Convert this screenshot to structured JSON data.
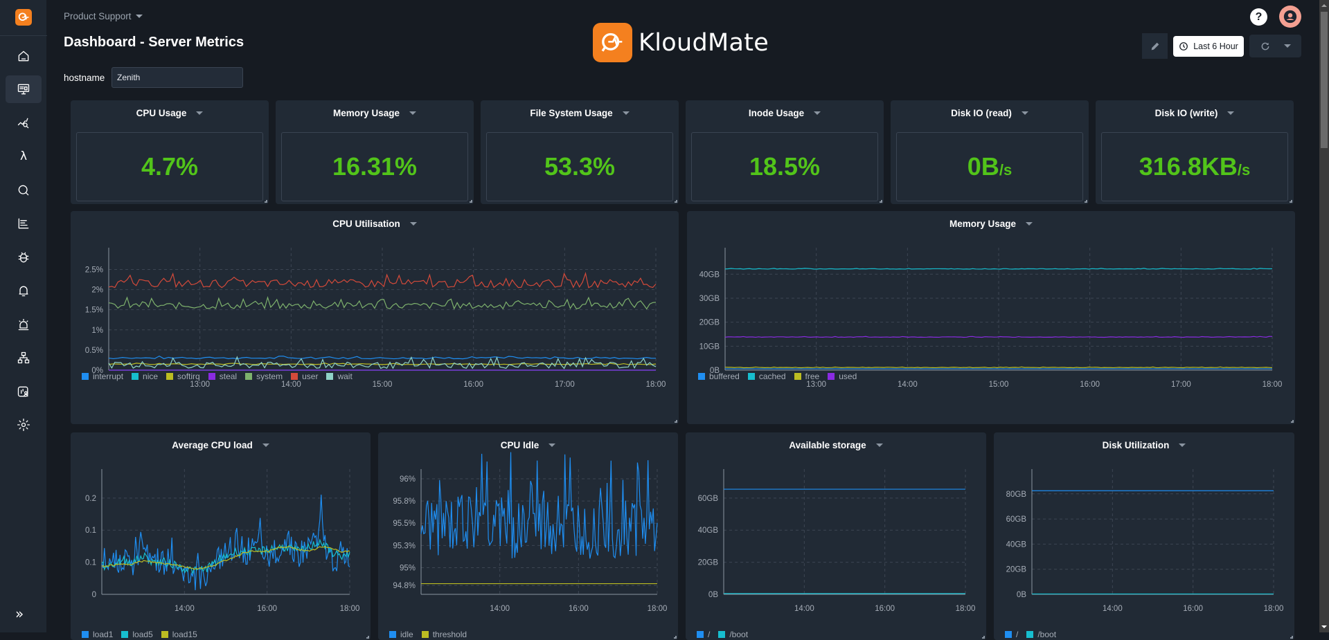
{
  "app": {
    "brand": "KloudMate"
  },
  "header": {
    "org": "Product Support",
    "title": "Dashboard - Server Metrics",
    "hostname_label": "hostname",
    "hostname_value": "Zenith",
    "time_range": "Last 6 Hour",
    "help": "?"
  },
  "sidebar": {
    "items": [
      {
        "name": "home",
        "icon": "home-icon"
      },
      {
        "name": "dashboards",
        "icon": "monitor-icon",
        "active": true
      },
      {
        "name": "explore",
        "icon": "chart-search-icon"
      },
      {
        "name": "functions",
        "icon": "lambda-icon"
      },
      {
        "name": "search",
        "icon": "search-icon"
      },
      {
        "name": "traces",
        "icon": "gantt-icon"
      },
      {
        "name": "errors",
        "icon": "bug-icon"
      },
      {
        "name": "alerts",
        "icon": "bell-icon"
      },
      {
        "name": "incidents",
        "icon": "siren-icon"
      },
      {
        "name": "topology",
        "icon": "sitemap-icon"
      },
      {
        "name": "users",
        "icon": "user-report-icon"
      },
      {
        "name": "settings",
        "icon": "gear-icon"
      }
    ],
    "expand": "»"
  },
  "stats": [
    {
      "title": "CPU Usage",
      "value": "4.7%",
      "unit": ""
    },
    {
      "title": "Memory Usage",
      "value": "16.31%",
      "unit": ""
    },
    {
      "title": "File System Usage",
      "value": "53.3%",
      "unit": ""
    },
    {
      "title": "Inode Usage",
      "value": "18.5%",
      "unit": ""
    },
    {
      "title": "Disk IO (read)",
      "value": "0B",
      "unit": "/s"
    },
    {
      "title": "Disk IO (write)",
      "value": "316.8KB",
      "unit": "/s"
    }
  ],
  "colors": {
    "stat_value": "#52c41a",
    "accent": "#f4801f"
  },
  "chart_data": [
    {
      "id": "cpu_util",
      "type": "line",
      "title": "CPU Utilisation",
      "x": [
        "13:00",
        "14:00",
        "15:00",
        "16:00",
        "17:00",
        "18:00"
      ],
      "x_range": [
        "12:00",
        "18:00"
      ],
      "yticks": [
        "0%",
        "0.5%",
        "1%",
        "1.5%",
        "2%",
        "2.5%"
      ],
      "ylim": [
        0,
        2.8
      ],
      "grid": true,
      "legend": "bottom-left",
      "series": [
        {
          "name": "interrupt",
          "color": "#1f8ef1",
          "mean": 0.3,
          "noise": 0.02
        },
        {
          "name": "nice",
          "color": "#17becf",
          "mean": 0.0,
          "noise": 0.0
        },
        {
          "name": "softirq",
          "color": "#bcbd22",
          "mean": 0.15,
          "noise": 0.01
        },
        {
          "name": "steal",
          "color": "#8a2be2",
          "mean": 0.0,
          "noise": 0.0
        },
        {
          "name": "system",
          "color": "#7eb26d",
          "mean": 1.6,
          "noise": 0.08
        },
        {
          "name": "user",
          "color": "#d44a3a",
          "mean": 2.15,
          "noise": 0.1
        },
        {
          "name": "wait",
          "color": "#8fd3c7",
          "mean": 0.12,
          "noise": 0.08
        }
      ]
    },
    {
      "id": "mem_usage",
      "type": "line",
      "title": "Memory Usage",
      "x": [
        "13:00",
        "14:00",
        "15:00",
        "16:00",
        "17:00",
        "18:00"
      ],
      "yticks": [
        "0B",
        "10GB",
        "20GB",
        "30GB",
        "40GB"
      ],
      "ylim": [
        0,
        47
      ],
      "grid": true,
      "legend": "bottom-left",
      "series": [
        {
          "name": "buffered",
          "color": "#1f8ef1",
          "mean": 0.6,
          "noise": 0.0
        },
        {
          "name": "cached",
          "color": "#17becf",
          "mean": 42.2,
          "noise": 0.1
        },
        {
          "name": "free",
          "color": "#bcbd22",
          "mean": 1.1,
          "noise": 0.1
        },
        {
          "name": "used",
          "color": "#8a2be2",
          "mean": 13.8,
          "noise": 0.1
        }
      ]
    },
    {
      "id": "avg_cpu_load",
      "type": "line",
      "title": "Average CPU load",
      "x": [
        "14:00",
        "16:00",
        "18:00"
      ],
      "yticks": [
        "0",
        "0.1",
        "0.1",
        "0.2"
      ],
      "ylim": [
        0,
        0.27
      ],
      "grid": true,
      "series": [
        {
          "name": "load1",
          "color": "#1f8ef1",
          "values": [
            0.06,
            0.07,
            0.09,
            0.06,
            0.13,
            0.08,
            0.08,
            0.07,
            0.06,
            0.04,
            0.05,
            0.08,
            0.09,
            0.12,
            0.1,
            0.1,
            0.08,
            0.11,
            0.13,
            0.09,
            0.11,
            0.15,
            0.08,
            0.09
          ]
        },
        {
          "name": "load5",
          "color": "#17becf",
          "values": [
            0.065,
            0.07,
            0.08,
            0.075,
            0.09,
            0.075,
            0.075,
            0.07,
            0.06,
            0.055,
            0.06,
            0.075,
            0.09,
            0.1,
            0.1,
            0.1,
            0.105,
            0.11,
            0.11,
            0.1,
            0.11,
            0.125,
            0.1,
            0.09
          ]
        },
        {
          "name": "load15",
          "color": "#bcbd22",
          "values": [
            0.065,
            0.068,
            0.07,
            0.072,
            0.078,
            0.075,
            0.072,
            0.07,
            0.064,
            0.06,
            0.062,
            0.07,
            0.08,
            0.09,
            0.1,
            0.1,
            0.1,
            0.11,
            0.11,
            0.105,
            0.1,
            0.11,
            0.11,
            0.1
          ]
        }
      ]
    },
    {
      "id": "cpu_idle",
      "type": "line",
      "title": "CPU Idle",
      "x": [
        "14:00",
        "16:00",
        "18:00"
      ],
      "yticks": [
        "94.8%",
        "95%",
        "95.3%",
        "95.5%",
        "95.8%",
        "96%"
      ],
      "ylim": [
        94.7,
        96.0
      ],
      "grid": true,
      "series": [
        {
          "name": "idle",
          "color": "#1f8ef1",
          "mean": 95.45,
          "noise": 0.35
        },
        {
          "name": "threshold",
          "color": "#bcbd22",
          "mean": 94.82,
          "noise": 0.0
        }
      ]
    },
    {
      "id": "avail_storage",
      "type": "line",
      "title": "Available storage",
      "x": [
        "14:00",
        "16:00",
        "18:00"
      ],
      "yticks": [
        "0B",
        "20GB",
        "40GB",
        "60GB"
      ],
      "ylim": [
        0,
        72
      ],
      "grid": true,
      "series": [
        {
          "name": "/",
          "color": "#1f8ef1",
          "mean": 65.5,
          "noise": 0.0
        },
        {
          "name": "/boot",
          "color": "#17becf",
          "mean": 0.5,
          "noise": 0.0
        }
      ]
    },
    {
      "id": "disk_util",
      "type": "line",
      "title": "Disk Utilization",
      "x": [
        "14:00",
        "16:00",
        "18:00"
      ],
      "yticks": [
        "0B",
        "20GB",
        "40GB",
        "60GB",
        "80GB"
      ],
      "ylim": [
        0,
        92
      ],
      "grid": true,
      "series": [
        {
          "name": "/",
          "color": "#1f8ef1",
          "mean": 82.5,
          "noise": 0.0
        },
        {
          "name": "/boot",
          "color": "#17becf",
          "mean": 0.3,
          "noise": 0.0
        }
      ]
    }
  ]
}
